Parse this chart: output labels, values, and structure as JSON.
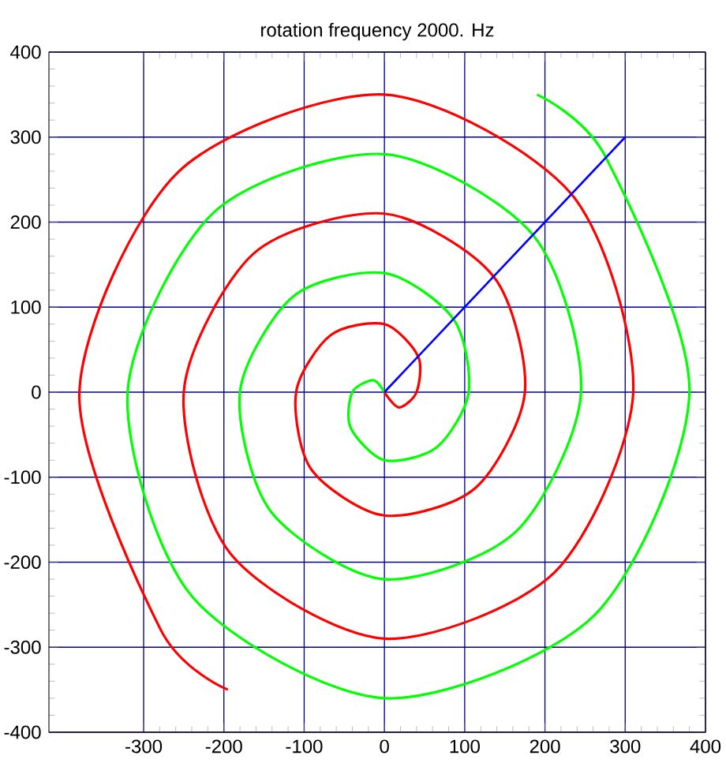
{
  "chart_data": {
    "type": "line",
    "title": "rotation frequency 2000. Hz",
    "xlim": [
      -418,
      400
    ],
    "ylim": [
      -400,
      400
    ],
    "xticks": [
      -300,
      -200,
      -100,
      0,
      100,
      200,
      300,
      400
    ],
    "yticks": [
      -400,
      -300,
      -200,
      -100,
      0,
      100,
      200,
      300,
      400
    ],
    "grid": true,
    "marker": "none",
    "line_style": "solid",
    "series": [
      {
        "color": "#ff0000",
        "x": [
          -195,
          -279,
          -380,
          -258,
          0,
          233,
          310,
          212,
          0,
          -191,
          -250,
          -163,
          0,
          136,
          175,
          113,
          0,
          -91,
          -110,
          -67,
          0,
          42,
          40,
          18,
          0
        ],
        "values": [
          -350,
          -279,
          0,
          258,
          350,
          233,
          0,
          -212,
          -290,
          -191,
          0,
          163,
          210,
          136,
          0,
          -113,
          -145,
          -91,
          0,
          67,
          80,
          42,
          0,
          -18,
          0
        ]
      },
      {
        "color": "#00ff00",
        "x": [
          190,
          276,
          380,
          262,
          0,
          -240,
          -320,
          -212,
          0,
          185,
          245,
          164,
          0,
          -141,
          -180,
          -113,
          0,
          86,
          105,
          65,
          0,
          -42,
          -40,
          -14,
          0
        ],
        "values": [
          350,
          276,
          0,
          -262,
          -360,
          -240,
          0,
          212,
          280,
          185,
          0,
          -164,
          -220,
          -141,
          0,
          113,
          140,
          86,
          0,
          -65,
          -80,
          -42,
          0,
          14,
          0
        ]
      },
      {
        "color": "#0000ff",
        "x": [
          0,
          300
        ],
        "values": [
          0,
          300
        ]
      }
    ]
  }
}
